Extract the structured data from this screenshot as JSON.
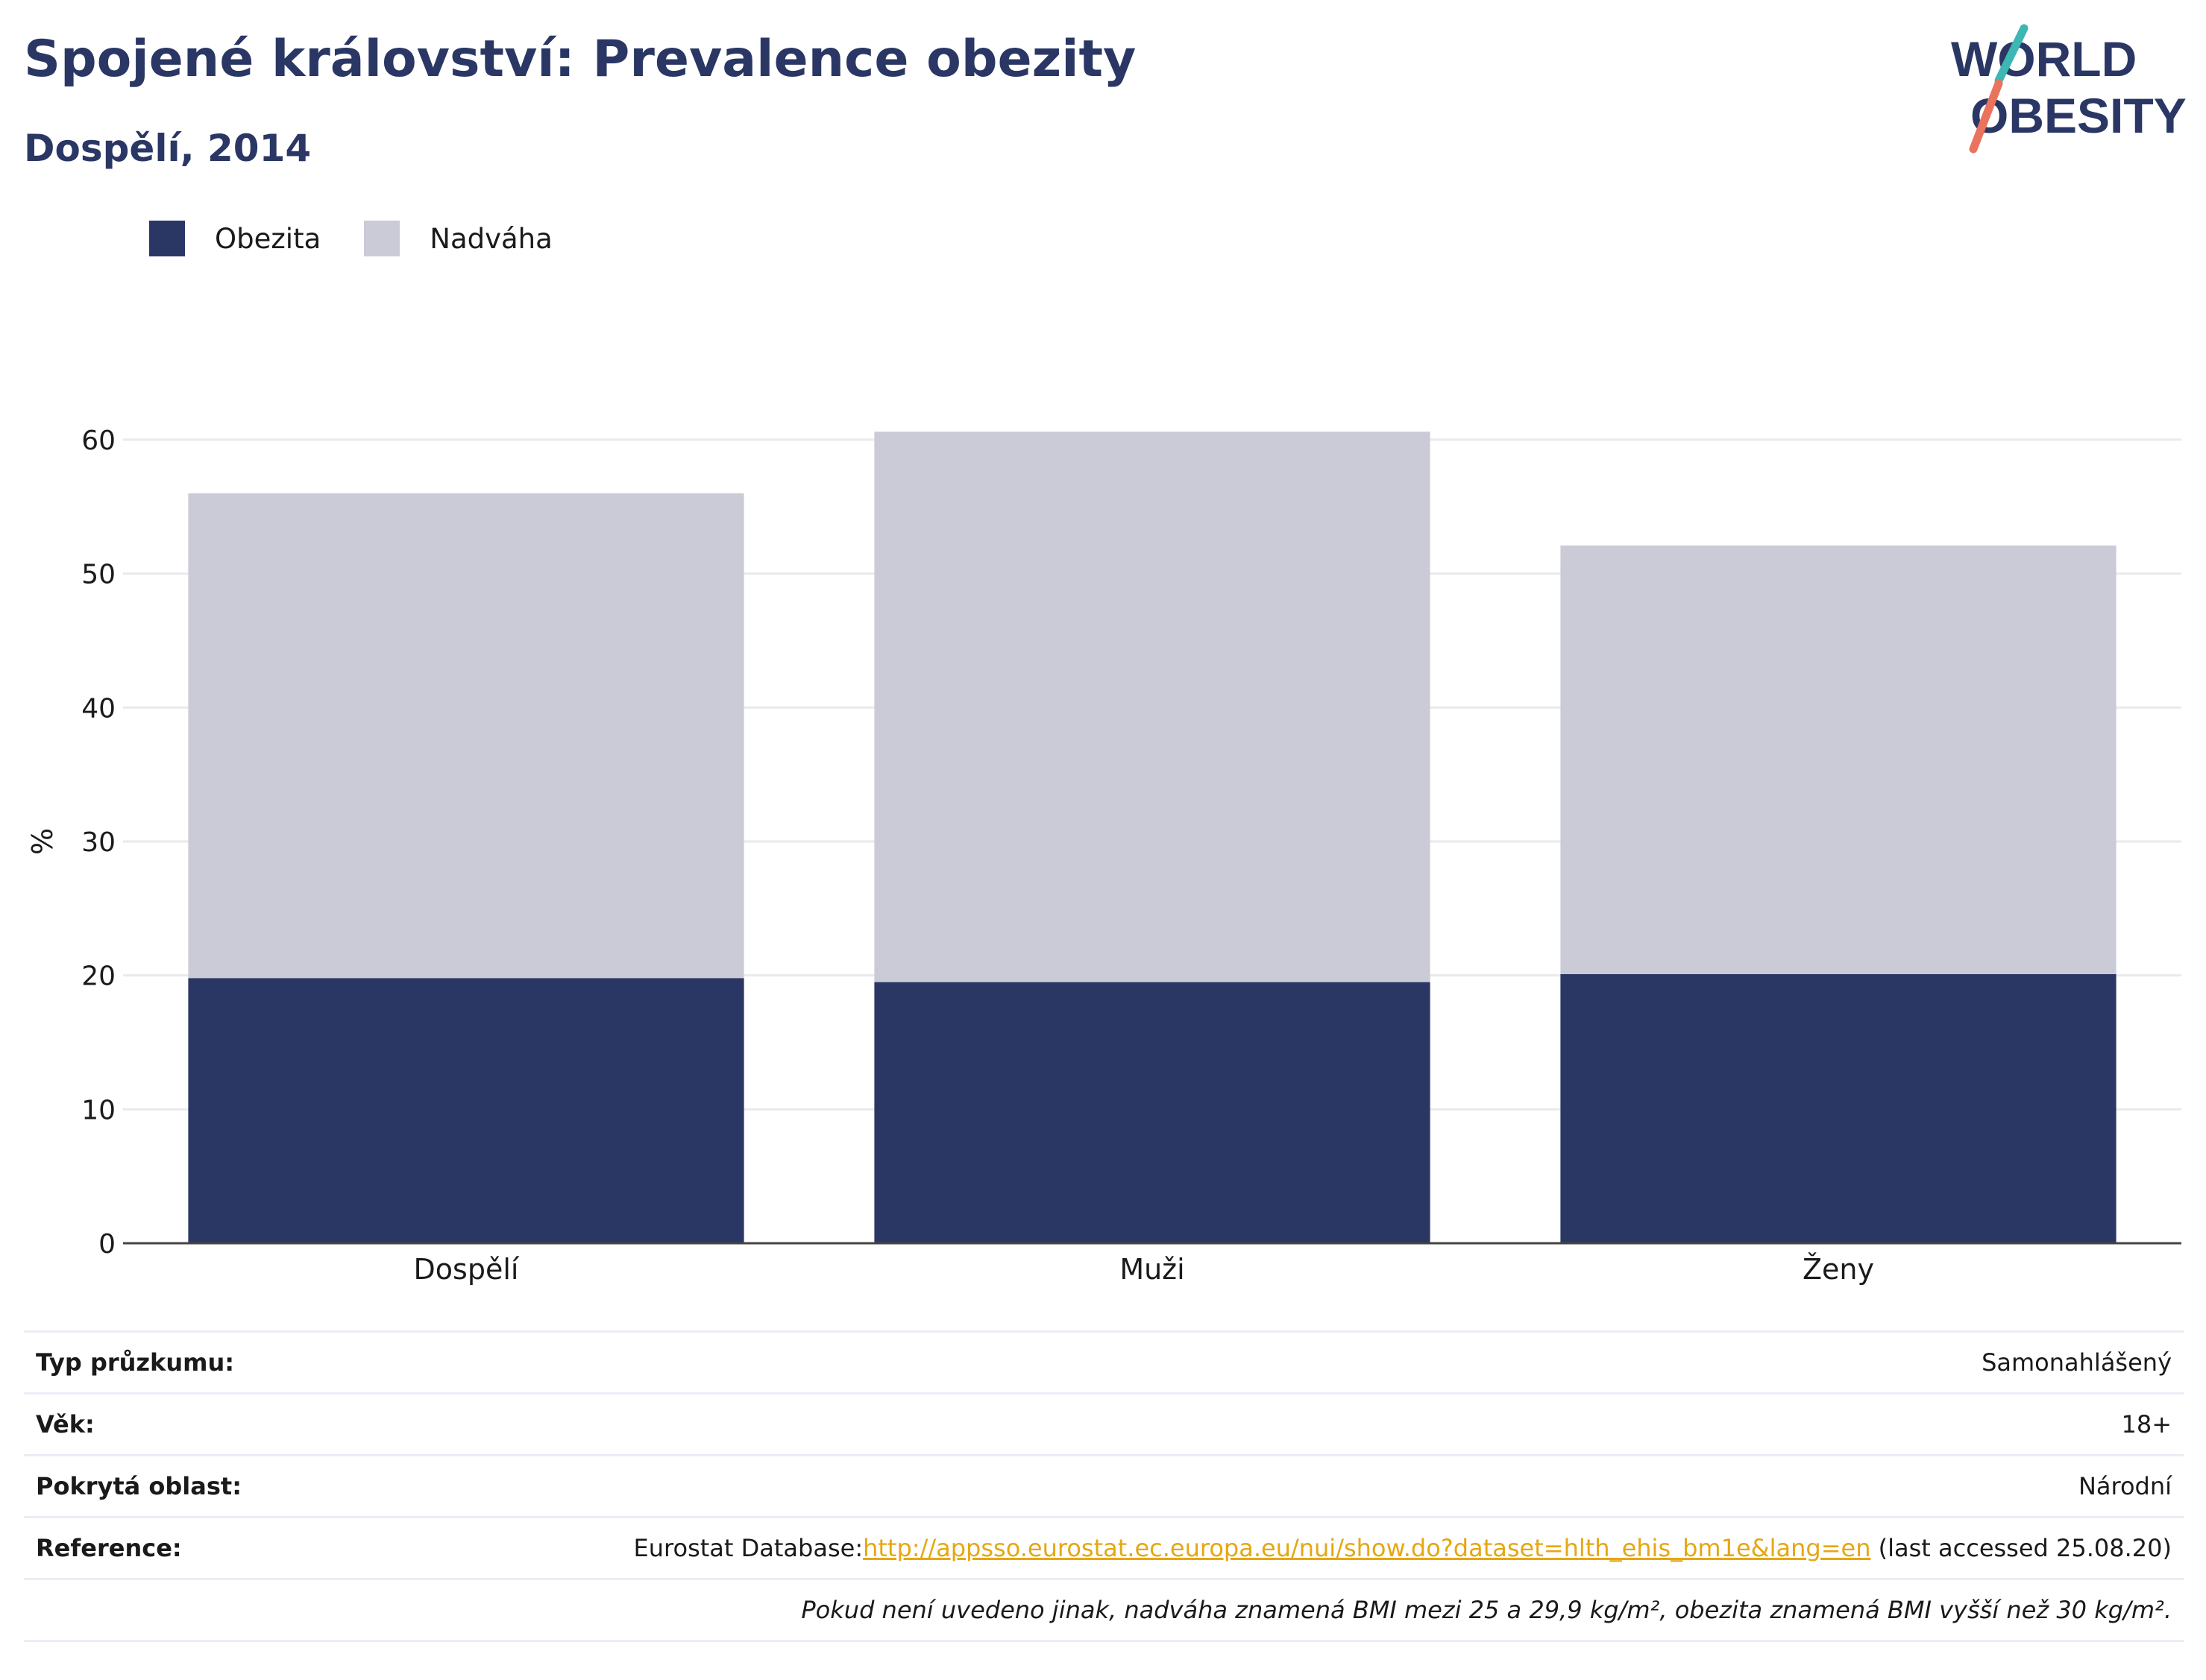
{
  "header": {
    "title": "Spojené království: Prevalence obezity",
    "subtitle": "Dospělí, 2014"
  },
  "logo": {
    "line1": "WORLD",
    "line2": "OBESITY"
  },
  "legend": [
    {
      "label": "Obezita",
      "color": "#2a3765"
    },
    {
      "label": "Nadváha",
      "color": "#cacbd7"
    }
  ],
  "chart_data": {
    "type": "bar",
    "stacked": true,
    "categories": [
      "Dospělí",
      "Muži",
      "Ženy"
    ],
    "series": [
      {
        "name": "Obezita",
        "color": "#2a3765",
        "values": [
          19.8,
          19.5,
          20.1
        ]
      },
      {
        "name": "Nadváha",
        "color": "#cacbd7",
        "values": [
          36.2,
          41.1,
          32.0
        ]
      }
    ],
    "ylabel": "%",
    "ylim": [
      0,
      62.5
    ],
    "yticks": [
      0,
      10,
      20,
      30,
      40,
      50,
      60
    ],
    "grid": true,
    "legend_position": "top-left"
  },
  "info": {
    "survey_type": {
      "label": "Typ průzkumu:",
      "value": "Samonahlášený"
    },
    "age": {
      "label": "Věk:",
      "value": "18+"
    },
    "coverage": {
      "label": "Pokrytá oblast:",
      "value": "Národní"
    },
    "reference": {
      "label": "Reference:",
      "prefix": "Eurostat Database:",
      "link": "http://appsso.eurostat.ec.europa.eu/nui/show.do?dataset=hlth_ehis_bm1e&lang=en",
      "suffix": " (last accessed 25.08.20)"
    },
    "note": "Pokud není uvedeno jinak, nadváha znamená BMI mezi 25 a 29,9 kg/m², obezita znamená BMI vyšší než 30 kg/m²."
  }
}
